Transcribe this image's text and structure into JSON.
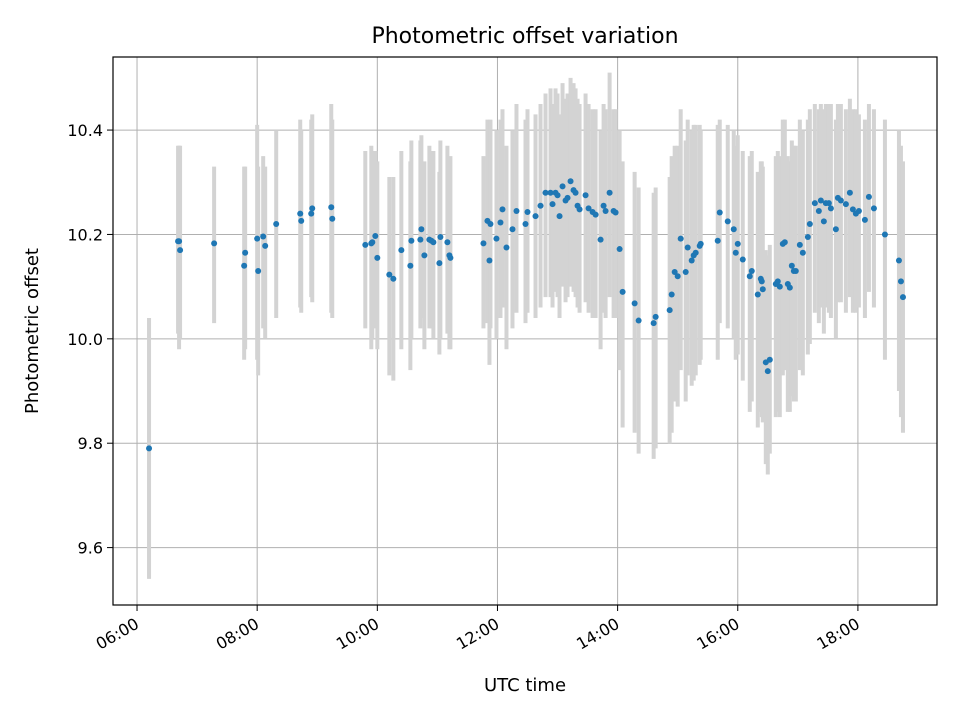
{
  "chart_data": {
    "type": "scatter",
    "title": "Photometric offset variation",
    "xlabel": "UTC time",
    "ylabel": "Photometric offset",
    "x_ticks": [
      "06:00",
      "08:00",
      "10:00",
      "12:00",
      "14:00",
      "16:00",
      "18:00"
    ],
    "y_ticks": [
      "9.6",
      "9.8",
      "10.0",
      "10.2",
      "10.4"
    ],
    "xlim": [
      "05:36",
      "19:19"
    ],
    "ylim": [
      9.49,
      10.54
    ],
    "grid": true,
    "colors": {
      "point": "#1f77b4",
      "errorbar": "#d3d3d3",
      "grid": "#b0b0b0"
    },
    "series": [
      {
        "x": [
          "06:12",
          "06:41",
          "06:42",
          "06:43",
          "07:17",
          "07:47",
          "07:48",
          "08:00",
          "08:01",
          "08:06",
          "08:08",
          "08:19",
          "08:43",
          "08:44",
          "08:54",
          "08:55",
          "09:14",
          "09:15",
          "09:48",
          "09:54",
          "09:55",
          "09:58",
          "10:00",
          "10:12",
          "10:16",
          "10:24",
          "10:33",
          "10:34",
          "10:43",
          "10:44",
          "10:47",
          "10:52",
          "10:54",
          "10:56",
          "11:02",
          "11:03",
          "11:10",
          "11:12",
          "11:13",
          "11:46",
          "11:50",
          "11:52",
          "11:53",
          "11:59",
          "12:03",
          "12:05",
          "12:09",
          "12:15",
          "12:19",
          "12:28",
          "12:30",
          "12:38",
          "12:43",
          "12:48",
          "12:53",
          "12:55",
          "12:58",
          "13:00",
          "13:02",
          "13:05",
          "13:08",
          "13:10",
          "13:13",
          "13:16",
          "13:18",
          "13:20",
          "13:22",
          "13:28",
          "13:31",
          "13:35",
          "13:38",
          "13:43",
          "13:46",
          "13:48",
          "13:52",
          "13:56",
          "13:58",
          "14:02",
          "14:05",
          "14:17",
          "14:21",
          "14:36",
          "14:38",
          "14:52",
          "14:54",
          "14:57",
          "15:00",
          "15:03",
          "15:08",
          "15:10",
          "15:14",
          "15:16",
          "15:18",
          "15:22",
          "15:23",
          "15:40",
          "15:42",
          "15:50",
          "15:56",
          "15:58",
          "16:00",
          "16:05",
          "16:12",
          "16:14",
          "16:20",
          "16:23",
          "16:24",
          "16:25",
          "16:28",
          "16:30",
          "16:32",
          "16:38",
          "16:40",
          "16:42",
          "16:45",
          "16:47",
          "16:50",
          "16:52",
          "16:54",
          "16:56",
          "16:58",
          "17:02",
          "17:05",
          "17:10",
          "17:12",
          "17:17",
          "17:21",
          "17:23",
          "17:26",
          "17:28",
          "17:31",
          "17:33",
          "17:38",
          "17:40",
          "17:43",
          "17:48",
          "17:52",
          "17:55",
          "17:58",
          "18:01",
          "18:07",
          "18:11",
          "18:16",
          "18:27",
          "18:41",
          "18:43",
          "18:45"
        ],
        "y": [
          9.79,
          10.187,
          10.187,
          10.17,
          10.183,
          10.14,
          10.165,
          10.192,
          10.13,
          10.196,
          10.178,
          10.22,
          10.24,
          10.226,
          10.24,
          10.25,
          10.252,
          10.23,
          10.18,
          10.183,
          10.185,
          10.197,
          10.155,
          10.123,
          10.115,
          10.17,
          10.14,
          10.188,
          10.19,
          10.21,
          10.16,
          10.19,
          10.188,
          10.185,
          10.145,
          10.195,
          10.185,
          10.16,
          10.155,
          10.183,
          10.226,
          10.15,
          10.22,
          10.192,
          10.223,
          10.248,
          10.175,
          10.21,
          10.245,
          10.22,
          10.243,
          10.235,
          10.255,
          10.28,
          10.28,
          10.258,
          10.28,
          10.275,
          10.235,
          10.292,
          10.265,
          10.27,
          10.302,
          10.285,
          10.28,
          10.255,
          10.248,
          10.275,
          10.25,
          10.243,
          10.238,
          10.19,
          10.255,
          10.245,
          10.28,
          10.245,
          10.242,
          10.172,
          10.09,
          10.068,
          10.035,
          10.03,
          10.042,
          10.055,
          10.085,
          10.128,
          10.12,
          10.192,
          10.128,
          10.175,
          10.15,
          10.16,
          10.165,
          10.178,
          10.182,
          10.188,
          10.242,
          10.225,
          10.21,
          10.165,
          10.182,
          10.152,
          10.12,
          10.13,
          10.085,
          10.115,
          10.11,
          10.095,
          9.955,
          9.938,
          9.96,
          10.105,
          10.11,
          10.1,
          10.182,
          10.185,
          10.105,
          10.098,
          10.14,
          10.13,
          10.13,
          10.18,
          10.165,
          10.195,
          10.22,
          10.26,
          10.245,
          10.265,
          10.225,
          10.26,
          10.26,
          10.25,
          10.21,
          10.27,
          10.265,
          10.258,
          10.28,
          10.248,
          10.24,
          10.245,
          10.228,
          10.272,
          10.25,
          10.2,
          10.15,
          10.11,
          10.08
        ]
      }
    ],
    "error_range": [
      [
        9.54,
        10.04
      ],
      [
        10.01,
        10.37
      ],
      [
        9.98,
        10.37
      ],
      [
        10.0,
        10.37
      ],
      [
        10.03,
        10.33
      ],
      [
        9.96,
        10.33
      ],
      [
        9.98,
        10.33
      ],
      [
        9.96,
        10.41
      ],
      [
        9.93,
        10.33
      ],
      [
        10.02,
        10.35
      ],
      [
        10.0,
        10.33
      ],
      [
        10.04,
        10.4
      ],
      [
        10.06,
        10.42
      ],
      [
        10.05,
        10.4
      ],
      [
        10.08,
        10.42
      ],
      [
        10.07,
        10.43
      ],
      [
        10.05,
        10.45
      ],
      [
        10.04,
        10.42
      ],
      [
        10.02,
        10.36
      ],
      [
        9.98,
        10.37
      ],
      [
        10.0,
        10.36
      ],
      [
        10.02,
        10.36
      ],
      [
        9.98,
        10.34
      ],
      [
        9.93,
        10.31
      ],
      [
        9.92,
        10.31
      ],
      [
        9.98,
        10.36
      ],
      [
        9.94,
        10.34
      ],
      [
        10.0,
        10.38
      ],
      [
        10.02,
        10.38
      ],
      [
        10.04,
        10.39
      ],
      [
        9.98,
        10.34
      ],
      [
        10.02,
        10.37
      ],
      [
        10.02,
        10.36
      ],
      [
        10.0,
        10.36
      ],
      [
        9.97,
        10.32
      ],
      [
        10.0,
        10.38
      ],
      [
        10.01,
        10.37
      ],
      [
        9.98,
        10.34
      ],
      [
        9.98,
        10.35
      ],
      [
        10.02,
        10.35
      ],
      [
        10.03,
        10.42
      ],
      [
        9.95,
        10.36
      ],
      [
        10.02,
        10.42
      ],
      [
        10.0,
        10.4
      ],
      [
        10.04,
        10.42
      ],
      [
        10.06,
        10.44
      ],
      [
        9.98,
        10.37
      ],
      [
        10.02,
        10.4
      ],
      [
        10.05,
        10.45
      ],
      [
        10.03,
        10.42
      ],
      [
        10.05,
        10.44
      ],
      [
        10.04,
        10.43
      ],
      [
        10.06,
        10.45
      ],
      [
        10.08,
        10.47
      ],
      [
        10.08,
        10.48
      ],
      [
        10.06,
        10.45
      ],
      [
        10.09,
        10.48
      ],
      [
        10.08,
        10.47
      ],
      [
        10.04,
        10.43
      ],
      [
        10.1,
        10.49
      ],
      [
        10.07,
        10.46
      ],
      [
        10.08,
        10.47
      ],
      [
        10.1,
        10.5
      ],
      [
        10.09,
        10.49
      ],
      [
        10.08,
        10.48
      ],
      [
        10.06,
        10.46
      ],
      [
        10.05,
        10.45
      ],
      [
        10.07,
        10.47
      ],
      [
        10.05,
        10.45
      ],
      [
        10.04,
        10.44
      ],
      [
        10.04,
        10.44
      ],
      [
        9.98,
        10.4
      ],
      [
        10.05,
        10.45
      ],
      [
        10.04,
        10.44
      ],
      [
        10.08,
        10.51
      ],
      [
        10.04,
        10.44
      ],
      [
        10.04,
        10.44
      ],
      [
        9.94,
        10.4
      ],
      [
        9.83,
        10.34
      ],
      [
        9.82,
        10.32
      ],
      [
        9.78,
        10.29
      ],
      [
        9.77,
        10.28
      ],
      [
        9.79,
        10.29
      ],
      [
        9.8,
        10.31
      ],
      [
        9.82,
        10.35
      ],
      [
        9.88,
        10.37
      ],
      [
        9.87,
        10.37
      ],
      [
        9.94,
        10.44
      ],
      [
        9.88,
        10.38
      ],
      [
        9.93,
        10.42
      ],
      [
        9.91,
        10.4
      ],
      [
        9.92,
        10.41
      ],
      [
        9.93,
        10.41
      ],
      [
        9.95,
        10.41
      ],
      [
        9.96,
        10.4
      ],
      [
        9.96,
        10.41
      ],
      [
        10.03,
        10.42
      ],
      [
        10.02,
        10.41
      ],
      [
        10.0,
        10.4
      ],
      [
        9.96,
        10.37
      ],
      [
        9.97,
        10.39
      ],
      [
        9.92,
        10.36
      ],
      [
        9.86,
        10.35
      ],
      [
        9.88,
        10.36
      ],
      [
        9.83,
        10.32
      ],
      [
        9.86,
        10.34
      ],
      [
        9.85,
        10.34
      ],
      [
        9.84,
        10.33
      ],
      [
        9.76,
        10.17
      ],
      [
        9.74,
        10.16
      ],
      [
        9.78,
        10.18
      ],
      [
        9.85,
        10.35
      ],
      [
        9.86,
        10.36
      ],
      [
        9.85,
        10.35
      ],
      [
        9.93,
        10.42
      ],
      [
        9.94,
        10.42
      ],
      [
        9.86,
        10.35
      ],
      [
        9.86,
        10.34
      ],
      [
        9.89,
        10.38
      ],
      [
        9.88,
        10.37
      ],
      [
        9.88,
        10.37
      ],
      [
        9.94,
        10.42
      ],
      [
        9.93,
        10.4
      ],
      [
        9.97,
        10.42
      ],
      [
        9.99,
        10.44
      ],
      [
        10.05,
        10.45
      ],
      [
        10.03,
        10.44
      ],
      [
        10.06,
        10.45
      ],
      [
        10.01,
        10.44
      ],
      [
        10.06,
        10.45
      ],
      [
        10.05,
        10.45
      ],
      [
        10.04,
        10.45
      ],
      [
        10.0,
        10.42
      ],
      [
        10.07,
        10.45
      ],
      [
        10.07,
        10.45
      ],
      [
        10.05,
        10.44
      ],
      [
        10.08,
        10.46
      ],
      [
        10.05,
        10.44
      ],
      [
        10.05,
        10.44
      ],
      [
        10.06,
        10.43
      ],
      [
        10.04,
        10.42
      ],
      [
        10.09,
        10.45
      ],
      [
        10.06,
        10.44
      ],
      [
        9.96,
        10.42
      ],
      [
        9.9,
        10.4
      ],
      [
        9.85,
        10.37
      ],
      [
        9.82,
        10.34
      ]
    ]
  }
}
